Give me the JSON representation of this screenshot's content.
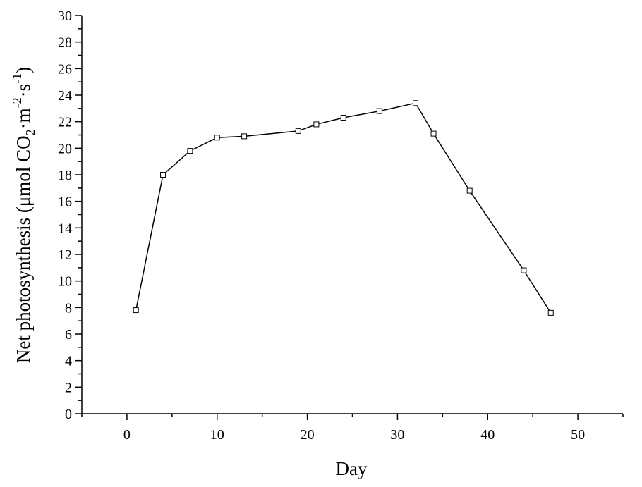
{
  "chart_data": {
    "type": "line",
    "xlabel": "Day",
    "ylabel": {
      "prefix": "Net photosynthesis (μmol CO",
      "sub": "2",
      "mid1": "·m",
      "sup1": "-2",
      "mid2": "·s",
      "sup2": "-1",
      "suffix": ")"
    },
    "xlim": [
      -5,
      55
    ],
    "ylim": [
      0,
      30
    ],
    "x_ticks": [
      0,
      10,
      20,
      30,
      40,
      50
    ],
    "y_ticks": [
      0,
      2,
      4,
      6,
      8,
      10,
      12,
      14,
      16,
      18,
      20,
      22,
      24,
      26,
      28,
      30
    ],
    "grid": false,
    "marker": "open-square",
    "series": [
      {
        "x": [
          1,
          4,
          7,
          10,
          13,
          19,
          21,
          24,
          28,
          32,
          34,
          38,
          44,
          47
        ],
        "y": [
          7.8,
          18.0,
          19.8,
          20.8,
          20.9,
          21.3,
          21.8,
          22.3,
          22.8,
          23.4,
          21.1,
          16.8,
          10.8,
          7.6
        ]
      }
    ]
  }
}
